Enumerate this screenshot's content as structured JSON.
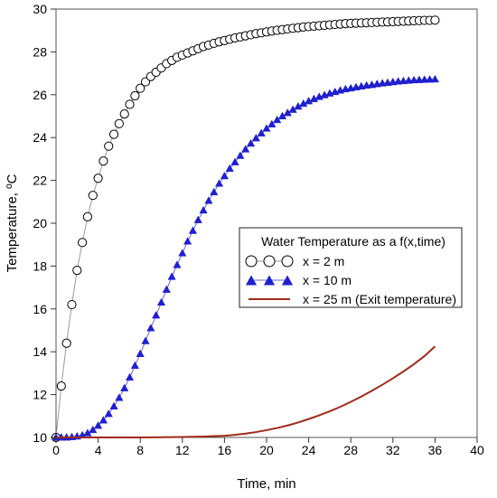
{
  "chart_data": {
    "type": "line",
    "xlabel": "Time, min",
    "ylabel": "Temperature, ºC",
    "xlim": [
      0,
      40
    ],
    "ylim": [
      10,
      30
    ],
    "xticks": [
      "0",
      "4",
      "8",
      "12",
      "16",
      "20",
      "24",
      "28",
      "32",
      "36",
      "40"
    ],
    "yticks": [
      "10",
      "12",
      "14",
      "16",
      "18",
      "20",
      "22",
      "24",
      "26",
      "28",
      "30"
    ],
    "grid": false,
    "legend": {
      "title": "Water Temperature as a f(x,time)",
      "placement": "center-right"
    },
    "series": [
      {
        "name": "x = 2 m",
        "marker": "circle-open",
        "color": "#000000",
        "line_color": "#9a9a9a",
        "x": [
          0,
          0.5,
          1,
          1.5,
          2,
          2.5,
          3,
          3.5,
          4,
          4.5,
          5,
          5.5,
          6,
          6.5,
          7,
          7.5,
          8,
          8.5,
          9,
          9.5,
          10,
          10.5,
          11,
          11.5,
          12,
          12.5,
          13,
          13.5,
          14,
          14.5,
          15,
          15.5,
          16,
          16.5,
          17,
          17.5,
          18,
          18.5,
          19,
          19.5,
          20,
          20.5,
          21,
          21.5,
          22,
          22.5,
          23,
          23.5,
          24,
          24.5,
          25,
          25.5,
          26,
          26.5,
          27,
          27.5,
          28,
          28.5,
          29,
          29.5,
          30,
          30.5,
          31,
          31.5,
          32,
          32.5,
          33,
          33.5,
          34,
          34.5,
          35,
          35.5,
          36
        ],
        "y": [
          10,
          12.4,
          14.4,
          16.2,
          17.8,
          19.1,
          20.3,
          21.3,
          22.1,
          22.9,
          23.6,
          24.15,
          24.65,
          25.1,
          25.55,
          25.95,
          26.3,
          26.6,
          26.85,
          27.05,
          27.25,
          27.45,
          27.6,
          27.75,
          27.85,
          27.95,
          28.05,
          28.15,
          28.25,
          28.32,
          28.4,
          28.47,
          28.53,
          28.59,
          28.65,
          28.7,
          28.75,
          28.8,
          28.85,
          28.89,
          28.93,
          28.97,
          29.01,
          29.04,
          29.07,
          29.1,
          29.13,
          29.16,
          29.18,
          29.2,
          29.22,
          29.24,
          29.26,
          29.28,
          29.3,
          29.32,
          29.33,
          29.34,
          29.35,
          29.36,
          29.37,
          29.38,
          29.39,
          29.4,
          29.41,
          29.42,
          29.43,
          29.44,
          29.45,
          29.46,
          29.47,
          29.47,
          29.48
        ]
      },
      {
        "name": "x = 10 m",
        "marker": "triangle-filled",
        "color": "#1f1fd0",
        "line_color": "#6a6ae0",
        "x": [
          0,
          0.5,
          1,
          1.5,
          2,
          2.5,
          3,
          3.5,
          4,
          4.5,
          5,
          5.5,
          6,
          6.5,
          7,
          7.5,
          8,
          8.5,
          9,
          9.5,
          10,
          10.5,
          11,
          11.5,
          12,
          12.5,
          13,
          13.5,
          14,
          14.5,
          15,
          15.5,
          16,
          16.5,
          17,
          17.5,
          18,
          18.5,
          19,
          19.5,
          20,
          20.5,
          21,
          21.5,
          22,
          22.5,
          23,
          23.5,
          24,
          24.5,
          25,
          25.5,
          26,
          26.5,
          27,
          27.5,
          28,
          28.5,
          29,
          29.5,
          30,
          30.5,
          31,
          31.5,
          32,
          32.5,
          33,
          33.5,
          34,
          34.5,
          35,
          35.5,
          36
        ],
        "y": [
          10,
          10,
          10,
          10.02,
          10.05,
          10.1,
          10.2,
          10.35,
          10.55,
          10.8,
          11.1,
          11.45,
          11.85,
          12.3,
          12.8,
          13.35,
          13.9,
          14.5,
          15.1,
          15.7,
          16.3,
          16.9,
          17.5,
          18.05,
          18.6,
          19.15,
          19.65,
          20.15,
          20.6,
          21.05,
          21.45,
          21.85,
          22.2,
          22.55,
          22.85,
          23.15,
          23.45,
          23.72,
          23.97,
          24.2,
          24.42,
          24.62,
          24.82,
          25.0,
          25.15,
          25.3,
          25.45,
          25.58,
          25.7,
          25.8,
          25.9,
          25.98,
          26.06,
          26.13,
          26.2,
          26.26,
          26.3,
          26.35,
          26.39,
          26.43,
          26.46,
          26.5,
          26.53,
          26.56,
          26.59,
          26.62,
          26.64,
          26.66,
          26.68,
          26.69,
          26.7,
          26.71,
          26.72
        ]
      },
      {
        "name": "x = 25 m (Exit temperature)",
        "marker": "none",
        "color": "#a02a1a",
        "x": [
          0,
          4,
          8,
          12,
          14,
          16,
          17,
          18,
          19,
          20,
          21,
          22,
          23,
          24,
          25,
          26,
          27,
          28,
          29,
          30,
          31,
          32,
          33,
          34,
          35,
          36
        ],
        "y": [
          10,
          10,
          10,
          10.02,
          10.04,
          10.08,
          10.12,
          10.18,
          10.25,
          10.34,
          10.44,
          10.56,
          10.7,
          10.86,
          11.03,
          11.22,
          11.43,
          11.66,
          11.91,
          12.18,
          12.46,
          12.76,
          13.08,
          13.42,
          13.8,
          14.25
        ]
      }
    ]
  }
}
